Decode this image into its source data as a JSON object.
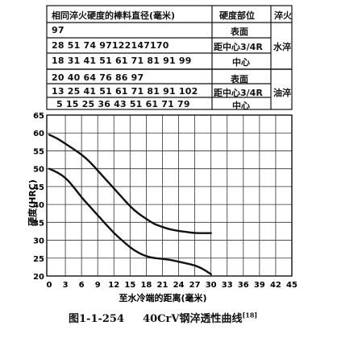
{
  "table": {
    "header_diameter": "相同淬火硬度的棒料直径(毫米)",
    "header_position": "硬度部位",
    "header_quench": "淬火",
    "water_rows": [
      {
        "values": "97",
        "position": "表面"
      },
      {
        "values": "28  51  74  97122147170",
        "position": "距中心3/4R"
      },
      {
        "values": "18  31  41  51  61  71  81  91  99",
        "position": "中心"
      }
    ],
    "water_label": "水淬",
    "oil_rows": [
      {
        "values": "20  40  64  76  86  97",
        "position": "表面"
      },
      {
        "values": "13  25  41  51  61  71  81  91  102",
        "position": "距中心3/4R"
      },
      {
        "values": "5  15  25  36  43  51  61  71  79",
        "position": "中心"
      }
    ],
    "oil_label": "油淬"
  },
  "caption": {
    "figure": "图1-1-254",
    "title": "40CrV钢淬透性曲线",
    "ref": "[18]"
  },
  "chart_data": {
    "type": "line",
    "ylabel": "硬度(HRC)",
    "xlabel": "至水冷端的距离(毫米)",
    "ylim": [
      20,
      65
    ],
    "xlim": [
      0,
      45
    ],
    "yticks": [
      "65",
      "60",
      "55",
      "50",
      "45",
      "40",
      "35",
      "30",
      "25",
      "20"
    ],
    "xticks": [
      "0",
      "3",
      "6",
      "9",
      "12",
      "15",
      "18",
      "21",
      "24",
      "27",
      "30",
      "33",
      "36",
      "39",
      "42",
      "45"
    ],
    "grid": true,
    "series": [
      {
        "x": [
          0,
          1.5,
          3,
          4.5,
          6,
          7.5,
          9,
          10.5,
          12,
          13.5,
          15,
          16.5,
          18,
          19.5,
          21,
          22.5,
          24,
          25.5,
          27,
          28.5,
          30
        ],
        "values": [
          59.5,
          58.5,
          57,
          55.5,
          54,
          52,
          49.5,
          47,
          44.5,
          42,
          39.5,
          37.5,
          36,
          34.5,
          33.7,
          33,
          32.6,
          32.3,
          32,
          32,
          32
        ]
      },
      {
        "x": [
          0,
          1.5,
          3,
          4.5,
          6,
          7.5,
          9,
          10.5,
          12,
          13.5,
          15,
          16.5,
          18,
          19.5,
          21,
          22.5,
          24,
          25.5,
          27,
          28.5,
          30
        ],
        "values": [
          50,
          49,
          47.5,
          45,
          42,
          39.5,
          37,
          34.5,
          32,
          30,
          28,
          26.5,
          25.5,
          25,
          24.8,
          24.5,
          24,
          23.5,
          23,
          22,
          20.5
        ]
      }
    ]
  }
}
